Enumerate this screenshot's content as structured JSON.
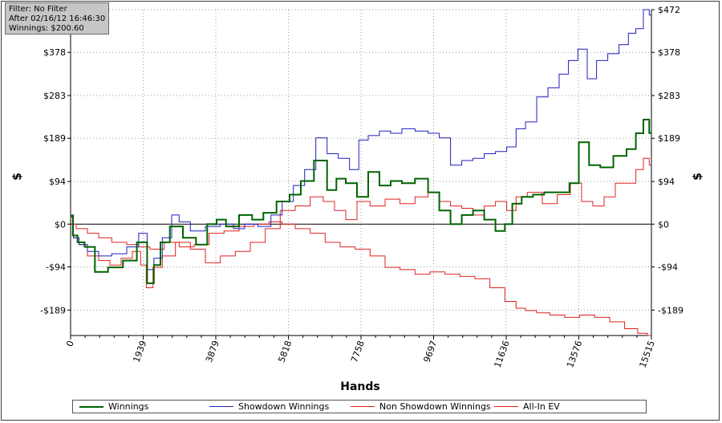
{
  "filter_box": {
    "line1": "Filter: No Filter",
    "line2": "After 02/16/12 16:46:30",
    "line3": "Winnings: $200.60"
  },
  "chart_data": {
    "type": "line",
    "xlabel": "Hands",
    "ylabel_left": "$",
    "ylabel_right": "$",
    "xlim": [
      0,
      15515
    ],
    "ylim": [
      -245,
      472
    ],
    "x_ticks": [
      0,
      1939,
      3879,
      5818,
      7758,
      9697,
      11636,
      13576,
      15515
    ],
    "x_tick_labels": [
      "0",
      "1939",
      "3879",
      "5818",
      "7758",
      "9697",
      "11636",
      "13576",
      "15515"
    ],
    "y_ticks": [
      -189,
      -94,
      0,
      94,
      189,
      283,
      378
    ],
    "y_tick_labels": [
      "-$189",
      "-$94",
      "$0",
      "$94",
      "$189",
      "$283",
      "$378"
    ],
    "y_right_ticks": [
      -189,
      -94,
      0,
      94,
      189,
      283,
      378,
      472
    ],
    "y_right_tick_labels": [
      "-$189",
      "-$94",
      "$0",
      "$94",
      "$189",
      "$283",
      "$378",
      "$472"
    ],
    "grid": true,
    "legend_position": "bottom",
    "series": [
      {
        "name": "Winnings",
        "color": "#006400",
        "x": [
          0,
          120,
          250,
          500,
          800,
          1200,
          1600,
          1940,
          2150,
          2300,
          2500,
          2800,
          3200,
          3500,
          3800,
          4000,
          4300,
          4700,
          5000,
          5300,
          5700,
          6000,
          6300,
          6700,
          7000,
          7200,
          7500,
          7800,
          8100,
          8400,
          8700,
          9000,
          9400,
          9700,
          10000,
          10300,
          10600,
          10900,
          11200,
          11500,
          11700,
          11900,
          12200,
          12500,
          12800,
          13200,
          13450,
          13700,
          14000,
          14300,
          14700,
          15000,
          15200,
          15400,
          15515
        ],
        "y": [
          18,
          -25,
          -40,
          -50,
          -105,
          -95,
          -80,
          -40,
          -130,
          -90,
          -40,
          -5,
          -30,
          -45,
          0,
          10,
          -5,
          20,
          10,
          25,
          50,
          65,
          95,
          140,
          75,
          100,
          90,
          60,
          115,
          85,
          95,
          90,
          100,
          70,
          30,
          0,
          20,
          30,
          10,
          -15,
          0,
          45,
          60,
          65,
          70,
          70,
          90,
          180,
          130,
          125,
          150,
          165,
          200,
          230,
          200.6
        ]
      },
      {
        "name": "Showdown Winnings",
        "color": "#1f1fc0",
        "x": [
          0,
          150,
          300,
          600,
          900,
          1300,
          1700,
          1940,
          2150,
          2300,
          2600,
          2800,
          3000,
          3400,
          3800,
          4200,
          4500,
          4800,
          5200,
          5500,
          5800,
          6100,
          6400,
          6700,
          7000,
          7300,
          7600,
          7800,
          8100,
          8400,
          8700,
          9000,
          9400,
          9700,
          10000,
          10300,
          10600,
          10900,
          11200,
          11500,
          11800,
          12000,
          12300,
          12600,
          12900,
          13200,
          13400,
          13700,
          13900,
          14200,
          14500,
          14800,
          15000,
          15200,
          15400,
          15515
        ],
        "y": [
          20,
          -30,
          -45,
          -60,
          -70,
          -65,
          -50,
          -20,
          -100,
          -75,
          -30,
          20,
          5,
          -15,
          -5,
          0,
          -10,
          0,
          -5,
          20,
          50,
          85,
          120,
          190,
          155,
          145,
          120,
          185,
          195,
          205,
          200,
          210,
          205,
          200,
          190,
          130,
          140,
          145,
          155,
          160,
          170,
          210,
          225,
          280,
          300,
          330,
          360,
          385,
          320,
          360,
          375,
          395,
          420,
          430,
          472,
          460
        ]
      },
      {
        "name": "Non Showdown Winnings",
        "color": "#e02020",
        "x": [
          0,
          300,
          600,
          900,
          1300,
          1700,
          1940,
          2300,
          2700,
          3100,
          3500,
          3900,
          4300,
          4700,
          5100,
          5500,
          5800,
          6200,
          6600,
          7000,
          7400,
          7800,
          8200,
          8600,
          9000,
          9400,
          9800,
          10200,
          10600,
          11000,
          11400,
          11800,
          12000,
          12300,
          12600,
          13000,
          13400,
          13800,
          14200,
          14600,
          15000,
          15300,
          15515
        ],
        "y": [
          0,
          -10,
          -20,
          -30,
          -40,
          -45,
          -50,
          -55,
          -40,
          -50,
          -45,
          -20,
          -15,
          -5,
          0,
          5,
          0,
          -10,
          -20,
          -40,
          -50,
          -55,
          -70,
          -95,
          -100,
          -110,
          -105,
          -110,
          -115,
          -120,
          -140,
          -170,
          -185,
          -190,
          -195,
          -200,
          -205,
          -200,
          -205,
          -215,
          -230,
          -240,
          -245
        ]
      },
      {
        "name": "All-In EV",
        "color": "#e02020",
        "x": [
          0,
          150,
          300,
          600,
          900,
          1200,
          1500,
          1800,
          1940,
          2100,
          2300,
          2600,
          3000,
          3400,
          3800,
          4200,
          4600,
          5000,
          5400,
          5800,
          6200,
          6600,
          6900,
          7200,
          7500,
          7800,
          8200,
          8600,
          9000,
          9400,
          9700,
          10000,
          10300,
          10600,
          10900,
          11200,
          11500,
          11800,
          12000,
          12400,
          12800,
          13200,
          13500,
          13800,
          14100,
          14400,
          14700,
          15000,
          15200,
          15400,
          15515
        ],
        "y": [
          15,
          -30,
          -45,
          -70,
          -80,
          -90,
          -75,
          -60,
          -90,
          -140,
          -95,
          -70,
          -40,
          -55,
          -85,
          -70,
          -60,
          -40,
          -10,
          30,
          40,
          60,
          50,
          30,
          10,
          50,
          40,
          55,
          45,
          60,
          70,
          50,
          40,
          35,
          20,
          40,
          50,
          30,
          60,
          70,
          45,
          65,
          90,
          50,
          40,
          60,
          90,
          90,
          120,
          145,
          130
        ]
      }
    ]
  }
}
